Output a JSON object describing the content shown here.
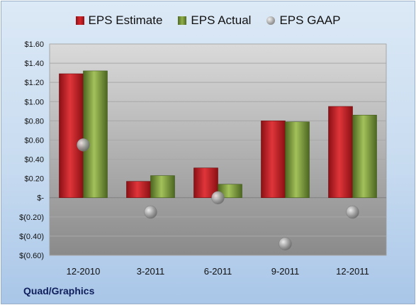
{
  "company": "Quad/Graphics",
  "legend": {
    "estimate": "EPS Estimate",
    "actual": "EPS Actual",
    "gaap": "EPS GAAP"
  },
  "colors": {
    "estimate": "#c81f25",
    "actual": "#8aaa42",
    "gaap": "#a0a0a0",
    "plot_top": "#d7d7d7",
    "plot_bottom": "#8e8e8e"
  },
  "chart_data": {
    "type": "bar",
    "categories": [
      "12-2010",
      "3-2011",
      "6-2011",
      "9-2011",
      "12-2011"
    ],
    "series": [
      {
        "name": "EPS Estimate",
        "values": [
          1.29,
          0.17,
          0.31,
          0.8,
          0.95
        ]
      },
      {
        "name": "EPS Actual",
        "values": [
          1.32,
          0.23,
          0.14,
          0.79,
          0.86
        ]
      },
      {
        "name": "EPS GAAP",
        "values": [
          0.55,
          -0.15,
          0.0,
          -0.48,
          -0.15
        ],
        "style": "marker"
      }
    ],
    "ylim": [
      -0.6,
      1.6
    ],
    "yticks": [
      1.6,
      1.4,
      1.2,
      1.0,
      0.8,
      0.6,
      0.4,
      0.2,
      0,
      -0.2,
      -0.4,
      -0.6
    ],
    "yticklabels": [
      "$1.60",
      "$1.40",
      "$1.20",
      "$1.00",
      "$0.80",
      "$0.60",
      "$0.40",
      "$0.20",
      "$-",
      "$(0.20)",
      "$(0.40)",
      "$(0.60)"
    ],
    "grid": true,
    "legend_position": "top"
  }
}
